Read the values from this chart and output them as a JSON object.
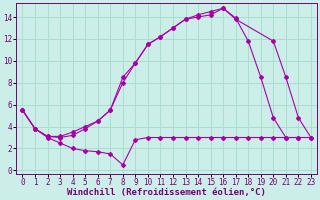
{
  "xlabel": "Windchill (Refroidissement éolien,°C)",
  "background_color": "#cceee8",
  "grid_color": "#aaddcc",
  "line_color": "#aa00aa",
  "xlim": [
    -0.5,
    23.5
  ],
  "ylim": [
    -0.3,
    15.3
  ],
  "xticks": [
    0,
    1,
    2,
    3,
    4,
    5,
    6,
    7,
    8,
    9,
    10,
    11,
    12,
    13,
    14,
    15,
    16,
    17,
    18,
    19,
    20,
    21,
    22,
    23
  ],
  "yticks": [
    0,
    2,
    4,
    6,
    8,
    10,
    12,
    14
  ],
  "line1": {
    "x": [
      0,
      1,
      2,
      3,
      4,
      5,
      6,
      7,
      8,
      9,
      10,
      11,
      12,
      13,
      14,
      15,
      16,
      17,
      18,
      19,
      20,
      21,
      22,
      23
    ],
    "y": [
      5.5,
      3.8,
      3.0,
      2.5,
      2.0,
      1.8,
      1.7,
      1.5,
      0.5,
      2.8,
      3.0,
      3.0,
      3.0,
      3.0,
      3.0,
      3.0,
      3.0,
      3.0,
      3.0,
      3.0,
      3.0,
      3.0,
      3.0,
      3.0
    ]
  },
  "line2": {
    "x": [
      0,
      1,
      2,
      3,
      4,
      5,
      6,
      7,
      8,
      9,
      10,
      11,
      12,
      13,
      14,
      15,
      16,
      17,
      18,
      19,
      20,
      21,
      22
    ],
    "y": [
      5.5,
      3.8,
      3.1,
      3.1,
      3.5,
      4.0,
      4.5,
      5.5,
      8.5,
      9.8,
      11.5,
      12.2,
      13.0,
      13.8,
      14.0,
      14.2,
      14.8,
      13.9,
      11.8,
      8.5,
      4.8,
      3.0,
      3.0
    ]
  },
  "line3": {
    "x": [
      0,
      1,
      2,
      3,
      4,
      5,
      6,
      7,
      8,
      9,
      10,
      11,
      12,
      13,
      14,
      15,
      16,
      17,
      20,
      21,
      22,
      23
    ],
    "y": [
      5.5,
      3.8,
      3.1,
      3.0,
      3.2,
      3.8,
      4.5,
      5.5,
      8.0,
      9.8,
      11.5,
      12.2,
      13.0,
      13.8,
      14.2,
      14.5,
      14.8,
      13.8,
      11.8,
      8.5,
      4.8,
      3.0
    ]
  },
  "tick_fontsize": 5.5,
  "label_fontsize": 6.5,
  "spine_color": "#770077",
  "label_color": "#770077"
}
